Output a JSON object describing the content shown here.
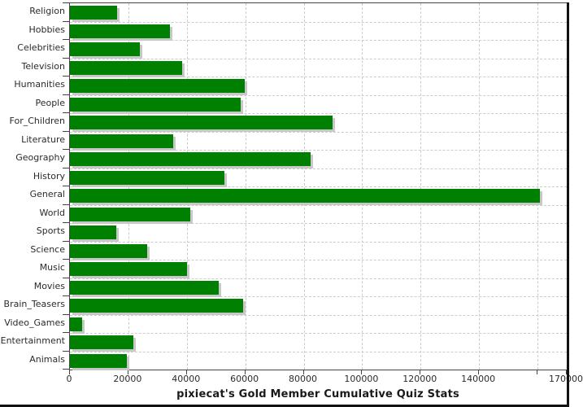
{
  "chart_data": {
    "type": "bar",
    "orientation": "horizontal",
    "title": "pixiecat's Gold Member Cumulative Quiz Stats",
    "categories": [
      "Religion",
      "Hobbies",
      "Celebrities",
      "Television",
      "Humanities",
      "People",
      "For_Children",
      "Literature",
      "Geography",
      "History",
      "General",
      "World",
      "Sports",
      "Science",
      "Music",
      "Movies",
      "Brain_Teasers",
      "Video_Games",
      "Entertainment",
      "Animals"
    ],
    "values": [
      16200,
      34100,
      24000,
      38500,
      59700,
      58300,
      90000,
      35300,
      82300,
      52800,
      160700,
      41300,
      15900,
      26400,
      40200,
      51000,
      59400,
      4100,
      21800,
      19600
    ],
    "xlabel": "",
    "ylabel": "",
    "xlim": [
      0,
      170000
    ],
    "x_ticks": [
      {
        "value": 0,
        "label": "0"
      },
      {
        "value": 20000,
        "label": "20000"
      },
      {
        "value": 40000,
        "label": "40000"
      },
      {
        "value": 60000,
        "label": "60000"
      },
      {
        "value": 80000,
        "label": "80000"
      },
      {
        "value": 100000,
        "label": "100000"
      },
      {
        "value": 120000,
        "label": "120000"
      },
      {
        "value": 140000,
        "label": "140000"
      },
      {
        "value": 160000,
        "label": ""
      },
      {
        "value": 170000,
        "label": "170000"
      }
    ],
    "grid": {
      "vertical": "on",
      "horizontal": "category-boundaries",
      "style": "dashed"
    },
    "legend": null,
    "colors": {
      "bar": "#008000",
      "bar_shadow": "#c8c8c8",
      "grid": "#cccccc",
      "axis": "#444444",
      "text": "#2b2b2b",
      "title": "#1a1a1a",
      "background": "#ffffff",
      "frame": "#111111"
    }
  }
}
